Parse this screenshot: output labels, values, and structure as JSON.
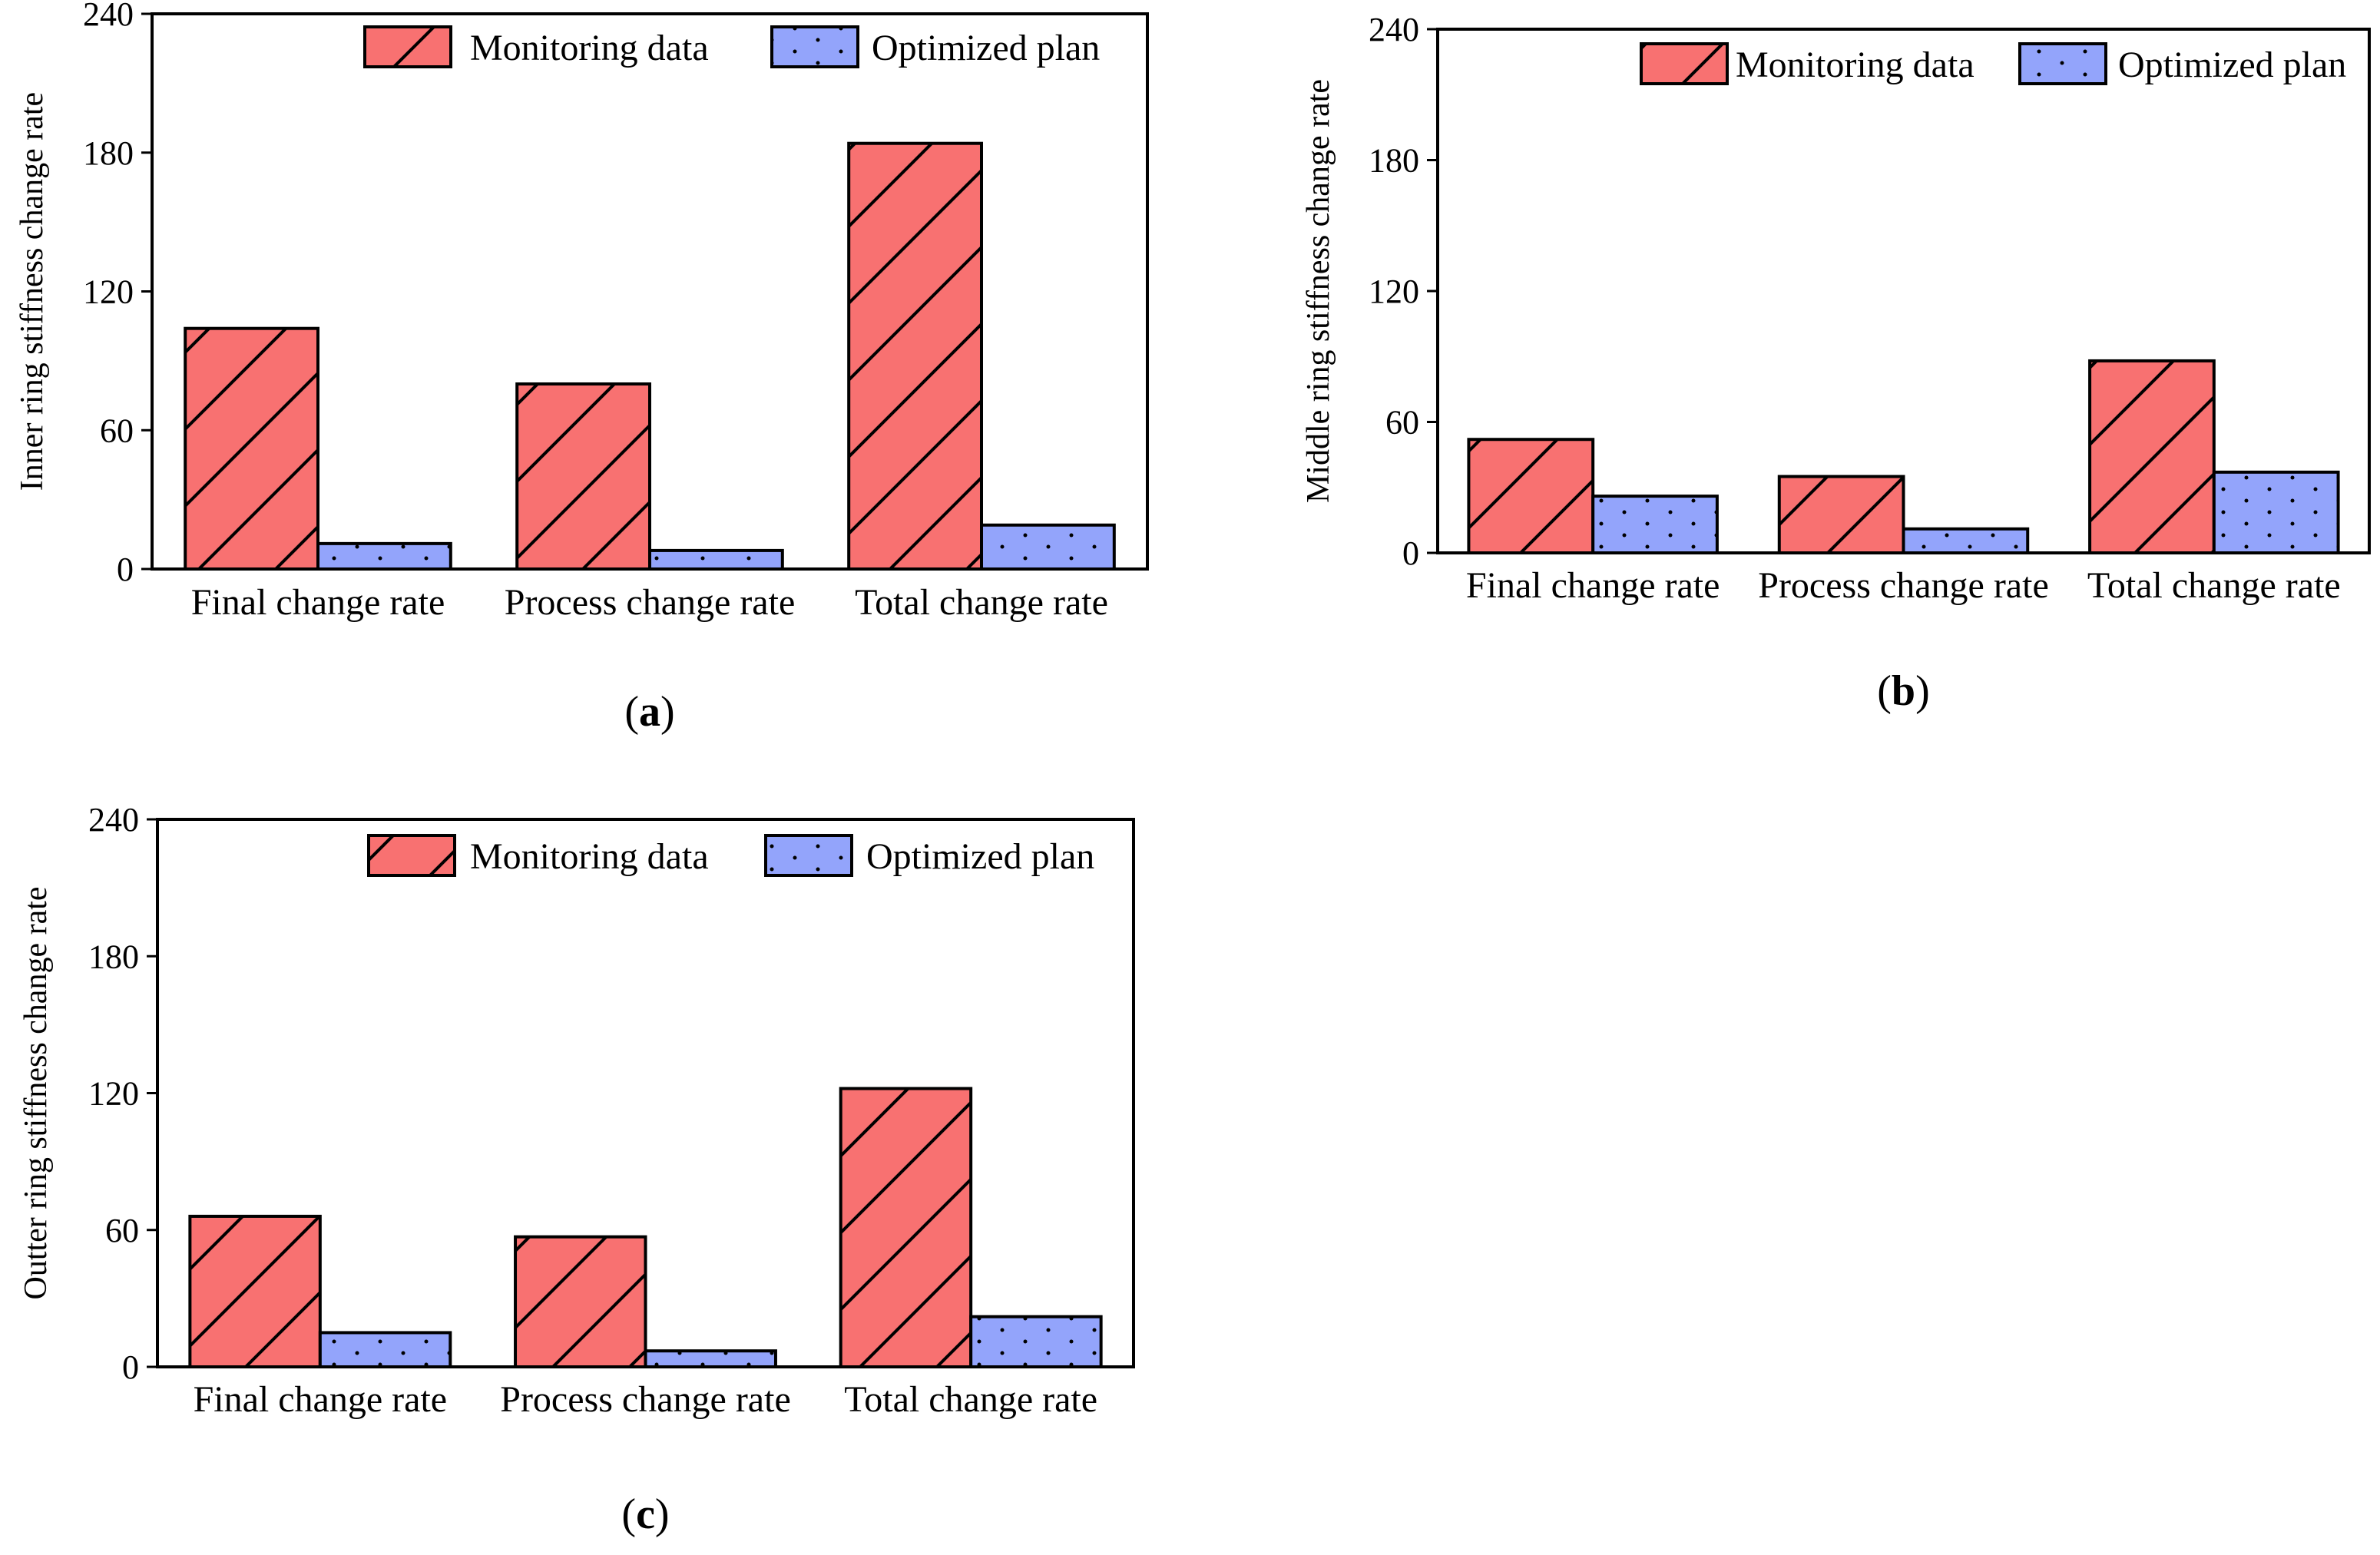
{
  "colors": {
    "monitoring": "#F87171",
    "optimized": "#93A4FB",
    "axis": "#000000"
  },
  "chart_data": [
    {
      "type": "bar",
      "panel": "a",
      "panel_label": "a",
      "ylabel": "Inner ring stiffness change rate",
      "xlabel": "",
      "ylim": [
        0,
        240
      ],
      "yticks": [
        0,
        60,
        120,
        180,
        240
      ],
      "categories": [
        "Final change rate",
        "Process change rate",
        "Total change rate"
      ],
      "legend_position": "top-right",
      "series": [
        {
          "name": "Monitoring data",
          "pattern": "diagonal-hatch",
          "values": [
            104,
            80,
            184
          ]
        },
        {
          "name": "Optimized plan",
          "pattern": "dots",
          "values": [
            11,
            8,
            19
          ]
        }
      ]
    },
    {
      "type": "bar",
      "panel": "b",
      "panel_label": "b",
      "ylabel": "Middle ring stiffness change rate",
      "xlabel": "",
      "ylim": [
        0,
        240
      ],
      "yticks": [
        0,
        60,
        120,
        180,
        240
      ],
      "categories": [
        "Final change rate",
        "Process change rate",
        "Total change rate"
      ],
      "legend_position": "top-right",
      "series": [
        {
          "name": "Monitoring data",
          "pattern": "diagonal-hatch",
          "values": [
            52,
            35,
            88
          ]
        },
        {
          "name": "Optimized plan",
          "pattern": "dots",
          "values": [
            26,
            11,
            37
          ]
        }
      ]
    },
    {
      "type": "bar",
      "panel": "c",
      "panel_label": "c",
      "ylabel": "Outter ring stiffness change rate",
      "xlabel": "",
      "ylim": [
        0,
        240
      ],
      "yticks": [
        0,
        60,
        120,
        180,
        240
      ],
      "categories": [
        "Final change rate",
        "Process change rate",
        "Total change rate"
      ],
      "legend_position": "top-right",
      "series": [
        {
          "name": "Monitoring data",
          "pattern": "diagonal-hatch",
          "values": [
            66,
            57,
            122
          ]
        },
        {
          "name": "Optimized plan",
          "pattern": "dots",
          "values": [
            15,
            7,
            22
          ]
        }
      ]
    }
  ]
}
